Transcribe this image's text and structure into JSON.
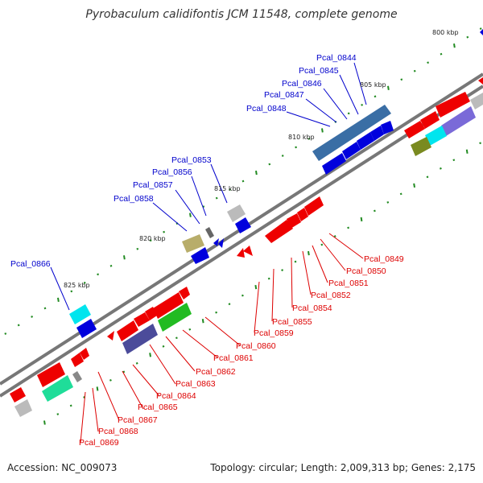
{
  "title": "Pyrobaculum calidifontis JCM 11548, complete genome",
  "footer": {
    "accession": "Accession: NC_009073",
    "stats": "Topology: circular; Length: 2,009,313 bp; Genes: 2,175"
  },
  "colors": {
    "backbone": "#777777",
    "forward_label": "#0000cc",
    "reverse_label": "#dd0000",
    "tick": "#228b22"
  },
  "kbp_labels": [
    "800 kbp",
    "805 kbp",
    "810 kbp",
    "815 kbp",
    "820 kbp",
    "825 kbp"
  ],
  "forward_gene_labels": [
    "Pcal_0844",
    "Pcal_0845",
    "Pcal_0846",
    "Pcal_0847",
    "Pcal_0848",
    "Pcal_0853",
    "Pcal_0856",
    "Pcal_0857",
    "Pcal_0858",
    "Pcal_0866"
  ],
  "reverse_gene_labels": [
    "Pcal_0849",
    "Pcal_0850",
    "Pcal_0851",
    "Pcal_0852",
    "Pcal_0854",
    "Pcal_0855",
    "Pcal_0859",
    "Pcal_0860",
    "Pcal_0861",
    "Pcal_0862",
    "Pcal_0863",
    "Pcal_0864",
    "Pcal_0865",
    "Pcal_0867",
    "Pcal_0868",
    "Pcal_0869"
  ]
}
